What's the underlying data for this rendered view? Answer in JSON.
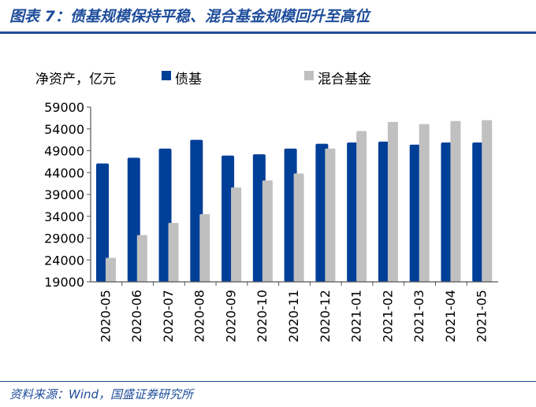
{
  "title": "图表 7：债基规模保持平稳、混合基金规模回升至高位",
  "source": "资料来源：Wind，国盛证券研究所",
  "chart_data": {
    "type": "bar",
    "title": "图表 7：债基规模保持平稳、混合基金规模回升至高位",
    "ylabel": "净资产，亿元",
    "ylim": [
      19000,
      59000
    ],
    "yticks": [
      19000,
      24000,
      29000,
      34000,
      39000,
      44000,
      49000,
      54000,
      59000
    ],
    "categories": [
      "2020-05",
      "2020-06",
      "2020-07",
      "2020-08",
      "2020-09",
      "2020-10",
      "2020-11",
      "2020-12",
      "2021-01",
      "2021-02",
      "2021-03",
      "2021-04",
      "2021-05"
    ],
    "series": [
      {
        "name": "债基",
        "color": "#003f98",
        "values": [
          46100,
          47400,
          49500,
          51500,
          47900,
          48200,
          49500,
          50600,
          50900,
          51100,
          50400,
          50900,
          50900
        ]
      },
      {
        "name": "混合基金",
        "color": "#c0c0c0",
        "values": [
          24500,
          29700,
          32500,
          34500,
          40600,
          42200,
          43800,
          49500,
          53500,
          55600,
          55100,
          55800,
          56000
        ]
      }
    ],
    "legend": "top",
    "grid": false
  }
}
